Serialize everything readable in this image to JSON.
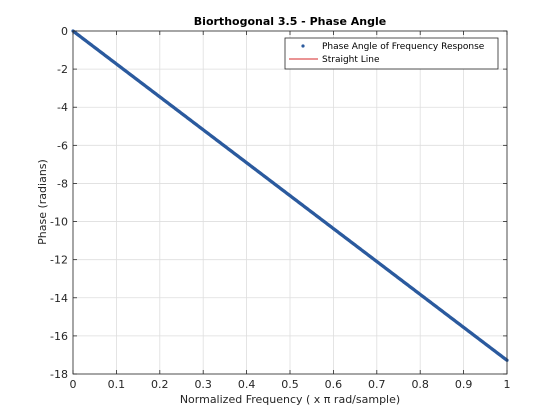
{
  "chart_data": {
    "type": "line",
    "title": "Biorthogonal 3.5 - Phase Angle",
    "xlabel": "Normalized Frequency ( x π rad/sample)",
    "ylabel": "Phase (radians)",
    "xlim": [
      0,
      1
    ],
    "ylim": [
      -18,
      0
    ],
    "xticks": [
      0,
      0.1,
      0.2,
      0.3,
      0.4,
      0.5,
      0.6,
      0.7,
      0.8,
      0.9,
      1
    ],
    "xtick_labels": [
      "0",
      "0.1",
      "0.2",
      "0.3",
      "0.4",
      "0.5",
      "0.6",
      "0.7",
      "0.8",
      "0.9",
      "1"
    ],
    "yticks": [
      0,
      -2,
      -4,
      -6,
      -8,
      -10,
      -12,
      -14,
      -16,
      -18
    ],
    "ytick_labels": [
      "0",
      "-2",
      "-4",
      "-6",
      "-8",
      "-10",
      "-12",
      "-14",
      "-16",
      "-18"
    ],
    "grid": true,
    "legend_position": "top-right",
    "series": [
      {
        "name": "Phase Angle of Frequency Response",
        "style": "points",
        "color": "#2b5a9e",
        "x": [
          0,
          1
        ],
        "y": [
          0,
          -17.28
        ]
      },
      {
        "name": "Straight Line",
        "style": "line",
        "color": "#d62728",
        "x": [
          0,
          1
        ],
        "y": [
          0,
          -17.28
        ]
      }
    ]
  }
}
